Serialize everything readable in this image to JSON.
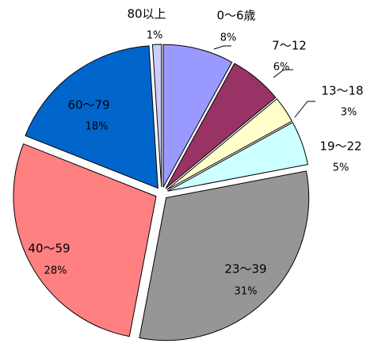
{
  "chart_data": {
    "type": "pie",
    "categories": [
      "0〜6歳",
      "7〜12",
      "13〜18",
      "19〜22",
      "23〜39",
      "40〜59",
      "60〜79",
      "80以上"
    ],
    "values": [
      8,
      6,
      3,
      5,
      31,
      28,
      18,
      1
    ],
    "value_labels": [
      "8%",
      "6%",
      "3%",
      "5%",
      "31%",
      "28%",
      "18%",
      "1%"
    ],
    "colors": [
      "#9999ff",
      "#993366",
      "#ffffcc",
      "#ccffff",
      "#969696",
      "#ff8080",
      "#0066cc",
      "#ccccff"
    ]
  }
}
